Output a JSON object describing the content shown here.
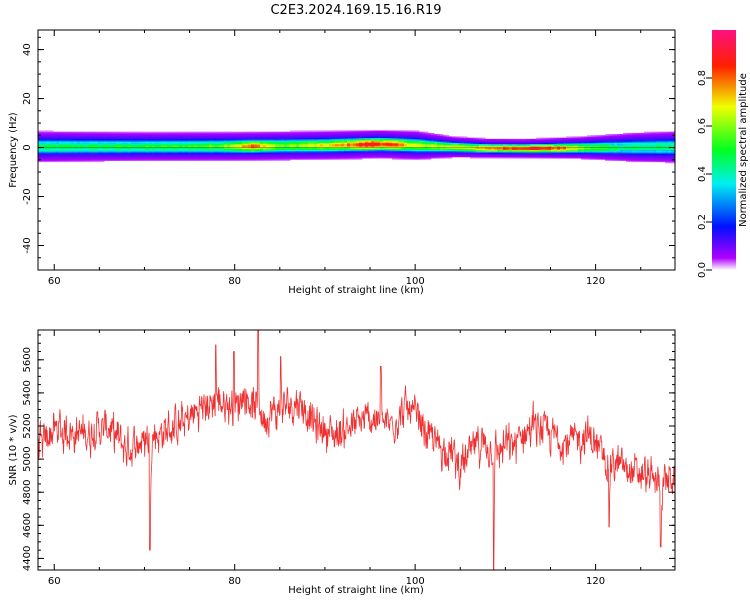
{
  "title": "C2E3.2024.169.15.16.R19",
  "colors": {
    "snr_line": "#f03030",
    "axis": "#000000"
  },
  "chart_data": [
    {
      "type": "heatmap",
      "xlabel": "Height of straight line (km)",
      "ylabel": "Frequency (Hz)",
      "xlim": [
        58.2,
        128.8
      ],
      "ylim": [
        -50,
        48
      ],
      "xticks": [
        60,
        80,
        100,
        120
      ],
      "yticks": [
        40,
        20,
        0,
        -20,
        -40
      ],
      "grid": false,
      "colorbar": {
        "label": "Normalized spectral amplitude",
        "range": [
          0,
          1
        ],
        "ticks": [
          "0.0",
          "0.2",
          "0.4",
          "0.6",
          "0.8"
        ],
        "tick_values": [
          0,
          0.2,
          0.4,
          0.6,
          0.8
        ],
        "colormap": "gist_rainbow_r"
      },
      "doppler_center_hz": [
        [
          58.2,
          0.5
        ],
        [
          70,
          0.5
        ],
        [
          80,
          0.6
        ],
        [
          90,
          1.0
        ],
        [
          96,
          1.5
        ],
        [
          100,
          1.0
        ],
        [
          104,
          0.3
        ],
        [
          108,
          -0.2
        ],
        [
          112,
          -0.3
        ],
        [
          118,
          0.0
        ],
        [
          124,
          0.2
        ],
        [
          128.8,
          0.3
        ]
      ],
      "peak_amplitude": [
        [
          58.2,
          0.5
        ],
        [
          66,
          0.52
        ],
        [
          74,
          0.55
        ],
        [
          78,
          0.6
        ],
        [
          82,
          0.85
        ],
        [
          85,
          0.6
        ],
        [
          89,
          0.7
        ],
        [
          92,
          0.8
        ],
        [
          95,
          0.97
        ],
        [
          98,
          0.82
        ],
        [
          101,
          0.65
        ],
        [
          104,
          0.72
        ],
        [
          107,
          0.75
        ],
        [
          110,
          0.9
        ],
        [
          113,
          0.96
        ],
        [
          116,
          0.85
        ],
        [
          119,
          0.6
        ],
        [
          123,
          0.5
        ],
        [
          128.8,
          0.48
        ]
      ],
      "spread_hz": [
        [
          58.2,
          3.2
        ],
        [
          70,
          3.0
        ],
        [
          80,
          3.0
        ],
        [
          90,
          3.0
        ],
        [
          100,
          3.0
        ],
        [
          104,
          2.2
        ],
        [
          108,
          2.0
        ],
        [
          112,
          2.0
        ],
        [
          118,
          2.3
        ],
        [
          124,
          3.0
        ],
        [
          128.8,
          3.3
        ]
      ]
    },
    {
      "type": "line",
      "xlabel": "Height of straight line (km)",
      "ylabel": "SNR (10 * v/v)",
      "xlim": [
        58.2,
        128.8
      ],
      "ylim": [
        4330,
        5780
      ],
      "xticks": [
        60,
        80,
        100,
        120
      ],
      "yticks": [
        4400,
        4600,
        4800,
        5000,
        5200,
        5400,
        5600
      ],
      "grid": false,
      "series": [
        {
          "trend": [
            [
              58.2,
              5050
            ],
            [
              60,
              5180
            ],
            [
              63,
              5150
            ],
            [
              66,
              5200
            ],
            [
              68,
              5050
            ],
            [
              70,
              5120
            ],
            [
              72,
              5160
            ],
            [
              74,
              5200
            ],
            [
              76,
              5300
            ],
            [
              78,
              5350
            ],
            [
              80,
              5300
            ],
            [
              81,
              5400
            ],
            [
              83,
              5250
            ],
            [
              85,
              5300
            ],
            [
              87,
              5350
            ],
            [
              89,
              5200
            ],
            [
              91,
              5150
            ],
            [
              93,
              5200
            ],
            [
              95,
              5250
            ],
            [
              97,
              5200
            ],
            [
              99,
              5300
            ],
            [
              100,
              5250
            ],
            [
              102,
              5100
            ],
            [
              104,
              5050
            ],
            [
              105,
              4950
            ],
            [
              107,
              5100
            ],
            [
              109,
              5050
            ],
            [
              111,
              5100
            ],
            [
              113,
              5200
            ],
            [
              115,
              5150
            ],
            [
              117,
              5100
            ],
            [
              119,
              5150
            ],
            [
              121,
              5000
            ],
            [
              123,
              4950
            ],
            [
              125,
              4900
            ],
            [
              127,
              4850
            ],
            [
              128.8,
              4900
            ]
          ],
          "spikes_down": [
            [
              70.6,
              4450
            ],
            [
              108.7,
              4330
            ],
            [
              121.5,
              4590
            ],
            [
              127.2,
              4470
            ]
          ],
          "spikes_up": [
            [
              82.6,
              5780
            ],
            [
              77.9,
              5690
            ],
            [
              79.9,
              5650
            ],
            [
              96.2,
              5560
            ],
            [
              85.1,
              5620
            ]
          ]
        }
      ]
    }
  ]
}
